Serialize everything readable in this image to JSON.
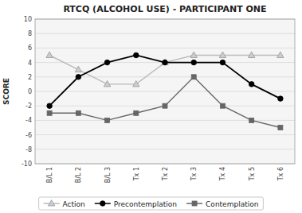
{
  "chart_data": {
    "type": "line",
    "title": "RTCQ (ALCOHOL USE) - PARTICIPANT ONE",
    "ylabel": "SCORE",
    "categories": [
      "B/L 1",
      "B/L 2",
      "B/L 3",
      "Tx 1",
      "Tx 2",
      "Tx 3",
      "Tx 4",
      "Tx 5",
      "Tx 6"
    ],
    "series": [
      {
        "name": "Action",
        "color": "#cccccc",
        "marker": "triangle",
        "values": [
          5,
          3,
          1,
          1,
          4,
          5,
          5,
          5,
          5
        ]
      },
      {
        "name": "Precontemplation",
        "color": "#000000",
        "marker": "circle",
        "values": [
          -2,
          2,
          4,
          5,
          4,
          4,
          4,
          1,
          -1
        ]
      },
      {
        "name": "Contemplation",
        "color": "#666666",
        "marker": "square",
        "values": [
          -3,
          -3,
          -4,
          -3,
          -2,
          2,
          -2,
          -4,
          -5
        ]
      }
    ],
    "ylim": [
      -10,
      10
    ],
    "yticks": [
      -10,
      -8,
      -6,
      -4,
      -2,
      0,
      2,
      4,
      6,
      8,
      10
    ],
    "grid": true,
    "legend": "bottom"
  }
}
